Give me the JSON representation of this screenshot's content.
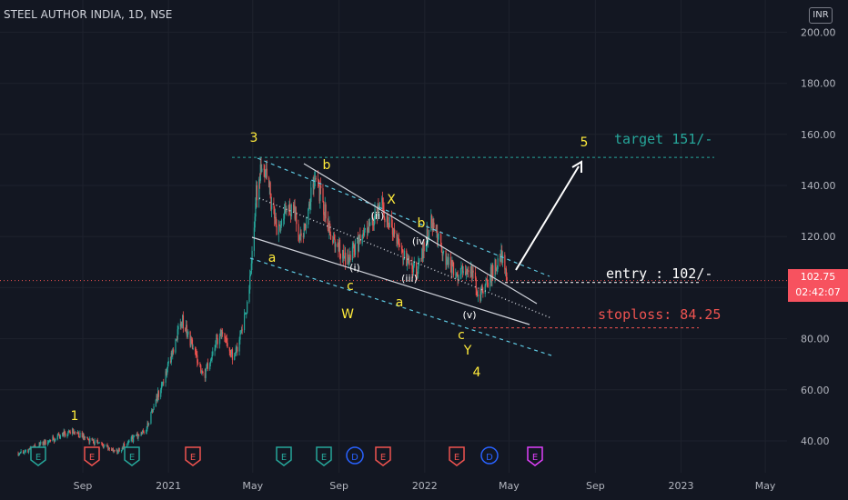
{
  "header": {
    "title": "STEEL AUTHOR INDIA, 1D, NSE",
    "currency": "INR"
  },
  "price_tag": {
    "price": "102.75",
    "countdown": "02:42:07"
  },
  "chart_data": {
    "type": "candlestick",
    "title": "STEEL AUTHOR INDIA, 1D, NSE",
    "ylim": [
      30,
      207
    ],
    "y_ticks": [
      "40.00",
      "60.00",
      "80.00",
      "100.00",
      "120.00",
      "140.00",
      "160.00",
      "180.00",
      "200.00"
    ],
    "x_ticks": [
      "Sep",
      "2021",
      "May",
      "Sep",
      "2022",
      "May",
      "Sep",
      "2023",
      "May"
    ],
    "x_tick_dates": [
      "2020-09-01",
      "2021-01-01",
      "2021-05-01",
      "2021-09-01",
      "2022-01-01",
      "2022-05-01",
      "2022-09-01",
      "2023-01-01",
      "2023-05-01"
    ],
    "last_price": 102.75,
    "price_path": [
      [
        "2020-06-01",
        35
      ],
      [
        "2020-07-15",
        40
      ],
      [
        "2020-08-15",
        44
      ],
      [
        "2020-09-15",
        40
      ],
      [
        "2020-10-20",
        36
      ],
      [
        "2020-12-01",
        45
      ],
      [
        "2021-01-01",
        70
      ],
      [
        "2021-01-20",
        88
      ],
      [
        "2021-02-20",
        65
      ],
      [
        "2021-03-15",
        82
      ],
      [
        "2021-04-05",
        72
      ],
      [
        "2021-04-25",
        95
      ],
      [
        "2021-05-05",
        135
      ],
      [
        "2021-05-15",
        151
      ],
      [
        "2021-06-05",
        122
      ],
      [
        "2021-06-25",
        132
      ],
      [
        "2021-07-10",
        118
      ],
      [
        "2021-07-28",
        144
      ],
      [
        "2021-08-20",
        122
      ],
      [
        "2021-09-10",
        111
      ],
      [
        "2021-10-10",
        122
      ],
      [
        "2021-11-01",
        132
      ],
      [
        "2021-12-01",
        112
      ],
      [
        "2021-12-20",
        106
      ],
      [
        "2022-01-10",
        125
      ],
      [
        "2022-01-25",
        115
      ],
      [
        "2022-02-15",
        105
      ],
      [
        "2022-03-05",
        108
      ],
      [
        "2022-03-20",
        97
      ],
      [
        "2022-04-05",
        105
      ],
      [
        "2022-04-20",
        113
      ],
      [
        "2022-04-28",
        102.75
      ]
    ],
    "horizontal_lines": [
      {
        "label": "target 151/-",
        "value": 151,
        "color": "#26a69a"
      },
      {
        "label": "entry : 102/-",
        "value": 102,
        "color": "#ffffff"
      },
      {
        "label": "stoploss: 84.25",
        "value": 84.25,
        "color": "#ef5350"
      }
    ],
    "wave_labels": [
      "1",
      "3",
      "a",
      "b",
      "c",
      "W",
      "X",
      "(i)",
      "(ii)",
      "(iii)",
      "(iv)",
      "(v)",
      "a",
      "b",
      "c",
      "Y",
      "4",
      "5"
    ],
    "event_markers": [
      "E",
      "E",
      "E",
      "E",
      "E",
      "E",
      "D",
      "E",
      "E",
      "D",
      "E"
    ]
  }
}
